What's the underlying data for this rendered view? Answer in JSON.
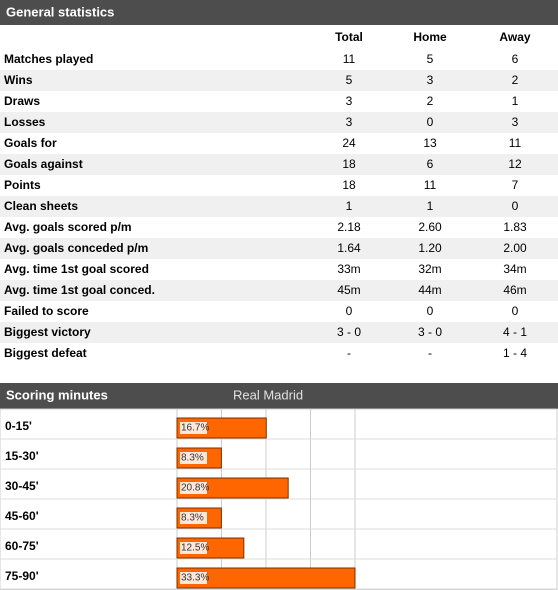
{
  "general": {
    "title": "General statistics",
    "columns": [
      "Total",
      "Home",
      "Away"
    ],
    "rows": [
      {
        "label": "Matches played",
        "values": [
          "11",
          "5",
          "6"
        ]
      },
      {
        "label": "Wins",
        "values": [
          "5",
          "3",
          "2"
        ]
      },
      {
        "label": "Draws",
        "values": [
          "3",
          "2",
          "1"
        ]
      },
      {
        "label": "Losses",
        "values": [
          "3",
          "0",
          "3"
        ]
      },
      {
        "label": "Goals for",
        "values": [
          "24",
          "13",
          "11"
        ]
      },
      {
        "label": "Goals against",
        "values": [
          "18",
          "6",
          "12"
        ]
      },
      {
        "label": "Points",
        "values": [
          "18",
          "11",
          "7"
        ]
      },
      {
        "label": "Clean sheets",
        "values": [
          "1",
          "1",
          "0"
        ]
      },
      {
        "label": "Avg. goals scored p/m",
        "values": [
          "2.18",
          "2.60",
          "1.83"
        ]
      },
      {
        "label": "Avg. goals conceded p/m",
        "values": [
          "1.64",
          "1.20",
          "2.00"
        ]
      },
      {
        "label": "Avg. time 1st goal scored",
        "values": [
          "33m",
          "32m",
          "34m"
        ]
      },
      {
        "label": "Avg. time 1st goal conced.",
        "values": [
          "45m",
          "44m",
          "46m"
        ]
      },
      {
        "label": "Failed to score",
        "values": [
          "0",
          "0",
          "0"
        ]
      },
      {
        "label": "Biggest victory",
        "values": [
          "3 - 0",
          "3 - 0",
          "4 - 1"
        ]
      },
      {
        "label": "Biggest defeat",
        "values": [
          "-",
          "-",
          "1 - 4"
        ]
      }
    ]
  },
  "chart_data": {
    "type": "bar",
    "title": "Scoring minutes",
    "categories": [
      "0-15'",
      "15-30'",
      "30-45'",
      "45-60'",
      "60-75'",
      "75-90'"
    ],
    "series": [
      {
        "name": "Real Madrid",
        "color": "#ff6600",
        "values": [
          16.7,
          8.3,
          20.8,
          8.3,
          12.5,
          33.3
        ],
        "value_labels": [
          "16.7%",
          "8.3%",
          "20.8%",
          "8.3%",
          "12.5%",
          "33.3%"
        ]
      }
    ],
    "xlim": [
      0,
      33.3
    ],
    "grid": true
  }
}
